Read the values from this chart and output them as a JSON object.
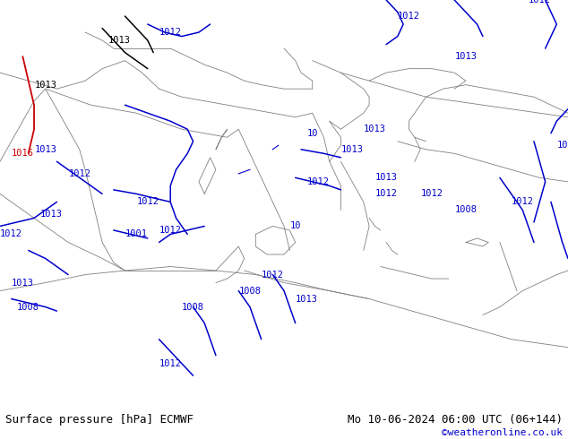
{
  "title_left": "Surface pressure [hPa] ECMWF",
  "title_right": "Mo 10-06-2024 06:00 UTC (06+144)",
  "copyright": "©weatheronline.co.uk",
  "bg_color": "#c8e6a0",
  "border_color": "#808080",
  "bottom_bar_color": "#e8e8e8",
  "contour_color_blue": "#0000cc",
  "contour_color_black": "#000000",
  "contour_color_red": "#cc0000",
  "figsize": [
    6.34,
    4.9
  ],
  "dpi": 100,
  "bottom_bar_height": 0.08
}
